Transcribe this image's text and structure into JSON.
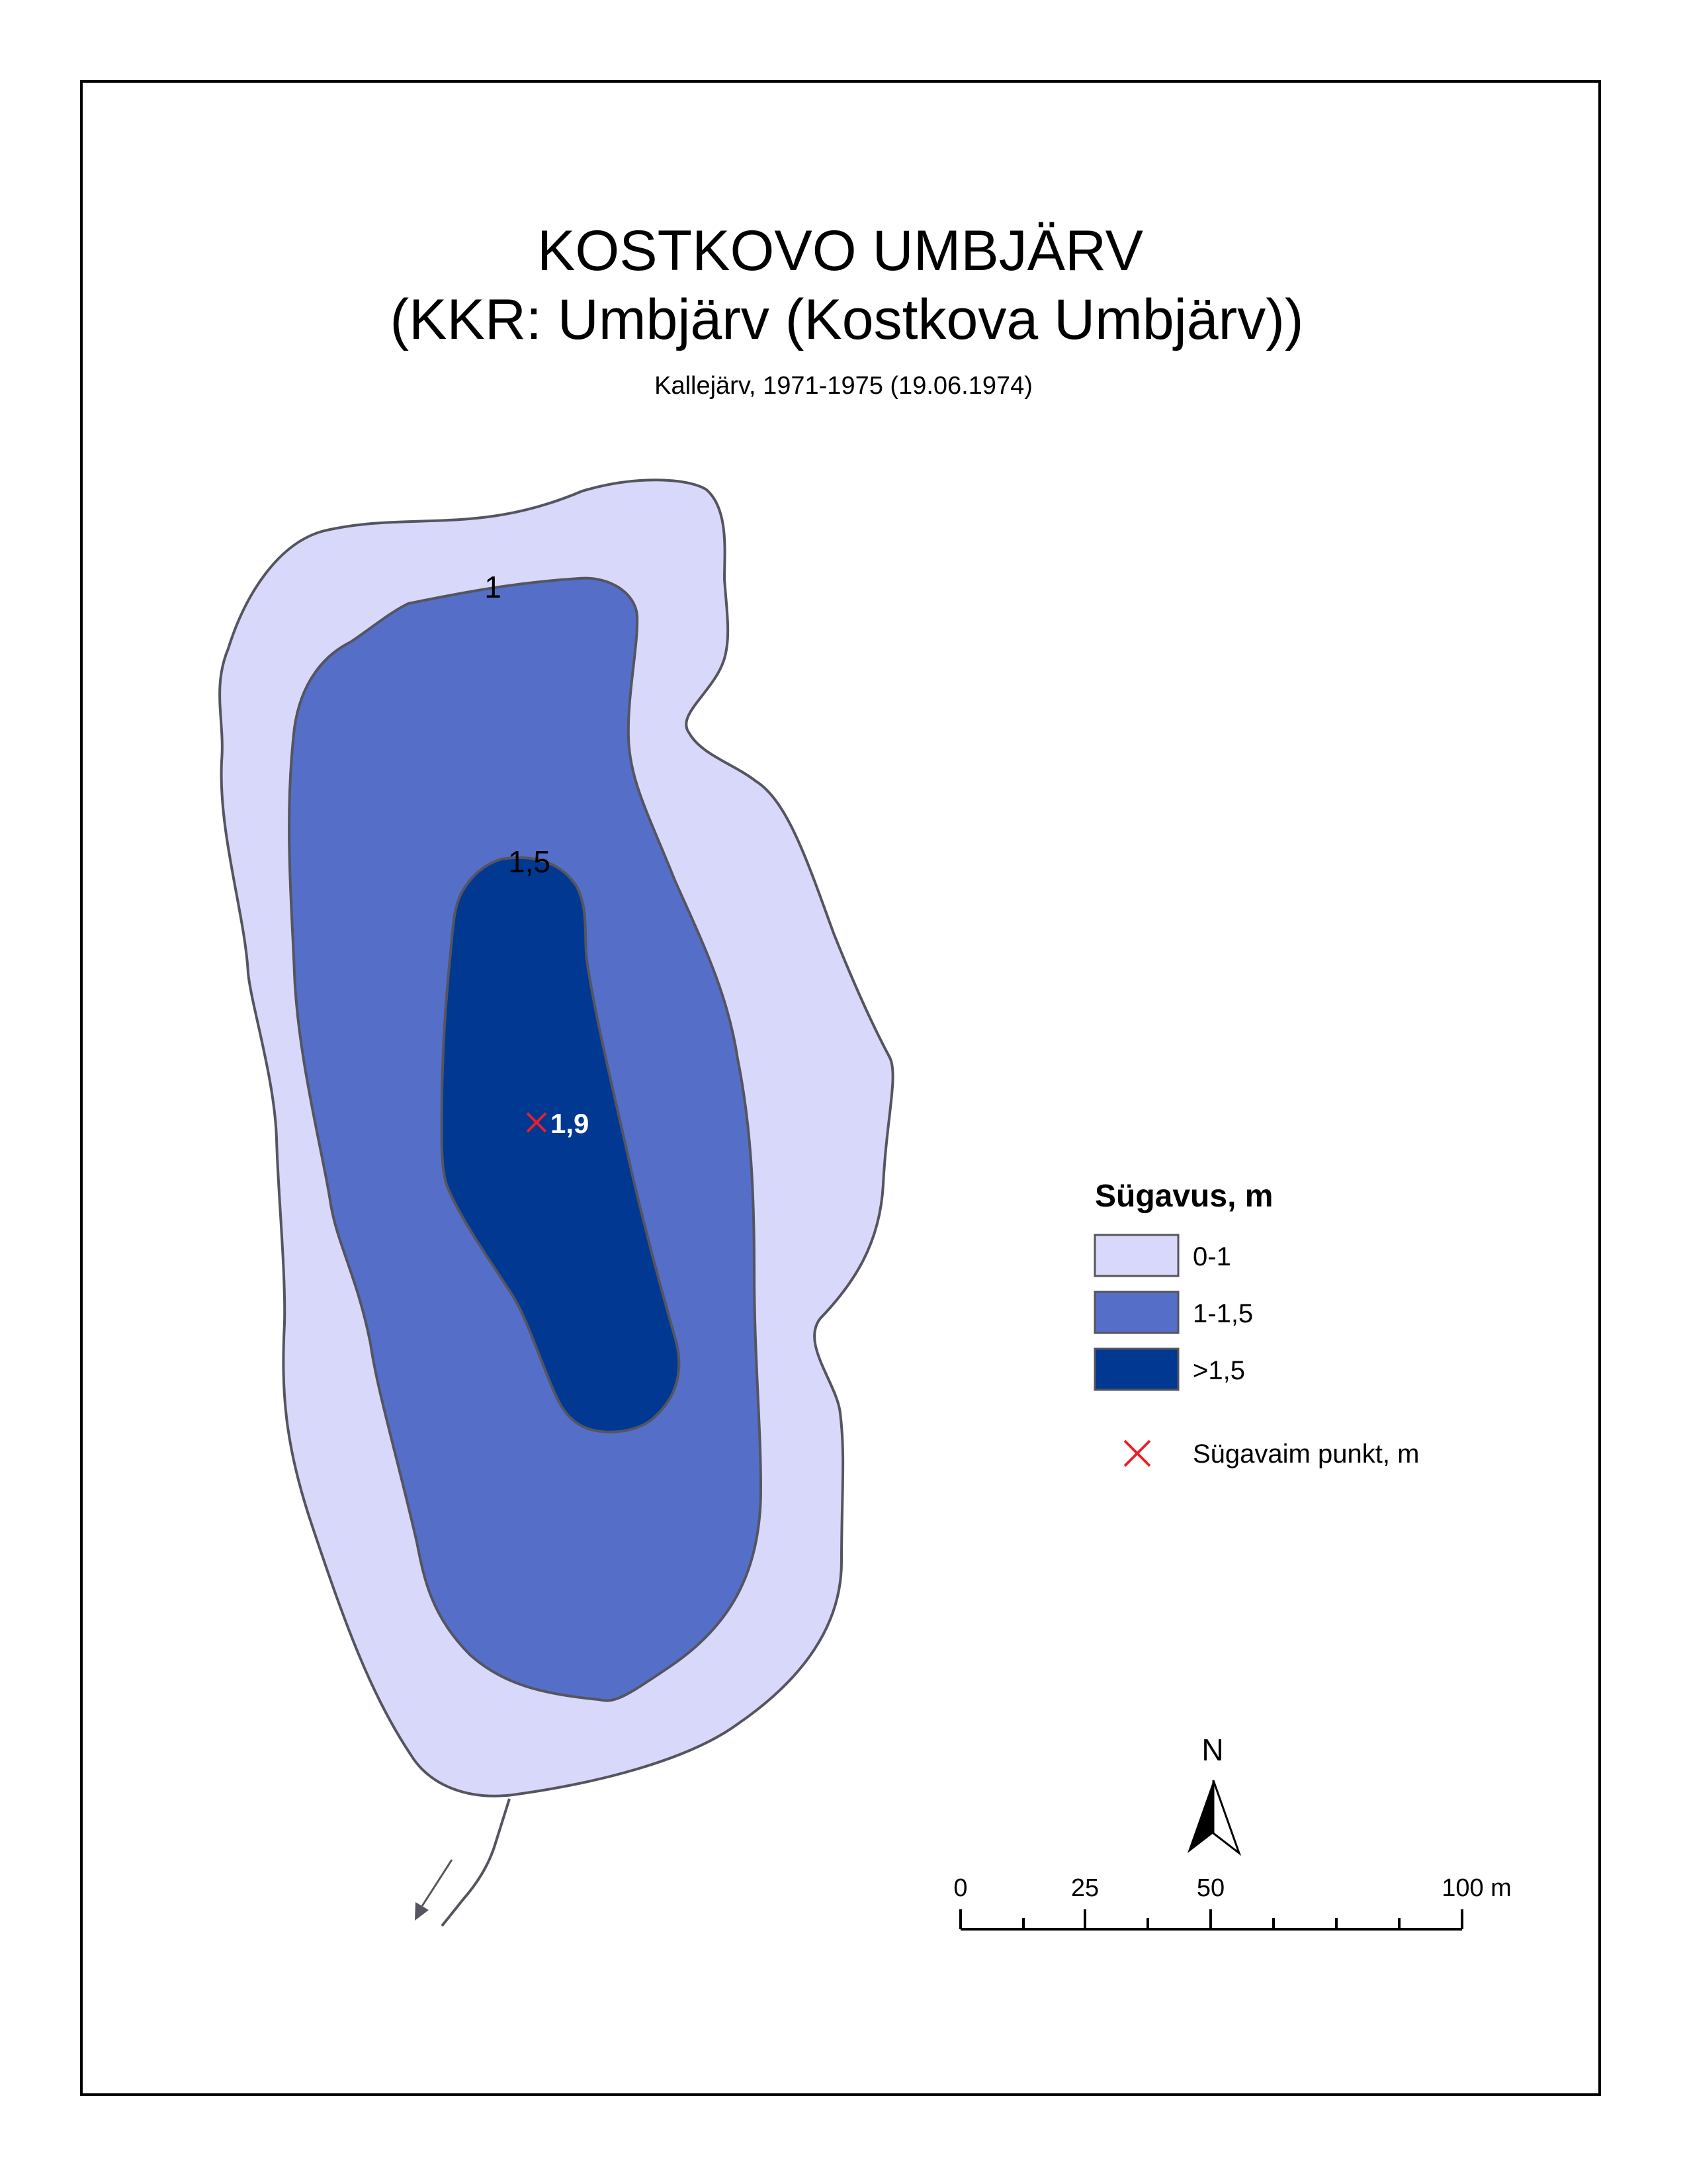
{
  "title": "KOSTKOVO UMBJÄRV",
  "subtitle": "(KKR: Umbjärv (Kostkova Umbjärv))",
  "source": "Kallejärv, 1971-1975 (19.06.1974)",
  "contours": {
    "c1": "1",
    "c15": "1,5"
  },
  "deepest_point": {
    "value": "1,9",
    "marker_color": "#e8202a"
  },
  "legend": {
    "title": "Sügavus, m",
    "items": [
      {
        "label": "0-1",
        "color": "#d8d8fa"
      },
      {
        "label": "1-1,5",
        "color": "#556ec8"
      },
      {
        "label": ">1,5",
        "color": "#003892"
      }
    ],
    "deepest_label": "Sügavaim punkt, m"
  },
  "north": {
    "label": "N"
  },
  "scale": {
    "labels": [
      "0",
      "25",
      "50",
      "100 m"
    ],
    "units": "m"
  },
  "colors": {
    "outline": "#555560",
    "frame": "#000000"
  }
}
